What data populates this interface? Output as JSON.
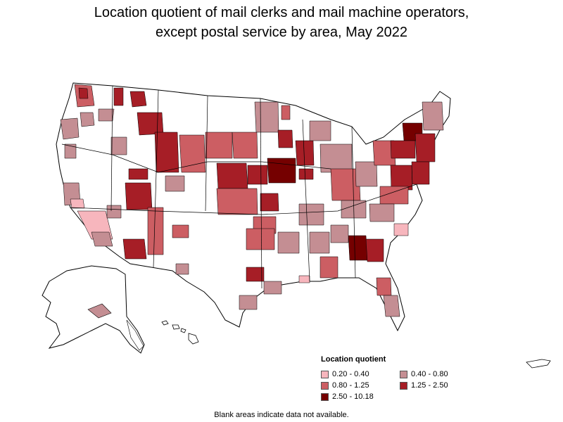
{
  "title_line1": "Location quotient of mail clerks and mail machine operators,",
  "title_line2": "except postal service by area, May 2022",
  "legend": {
    "title": "Location quotient",
    "items": [
      {
        "label": "0.20 - 0.40",
        "color": "#f7b6bd"
      },
      {
        "label": "0.40 - 0.80",
        "color": "#c48e93"
      },
      {
        "label": "0.80 - 1.25",
        "color": "#cc5e63"
      },
      {
        "label": "1.25 - 2.50",
        "color": "#a61e26"
      },
      {
        "label": "2.50 - 10.18",
        "color": "#750000"
      }
    ]
  },
  "note": "Blank areas indicate data not available.",
  "colors": {
    "outline": "#000000",
    "no_data": "#ffffff"
  }
}
